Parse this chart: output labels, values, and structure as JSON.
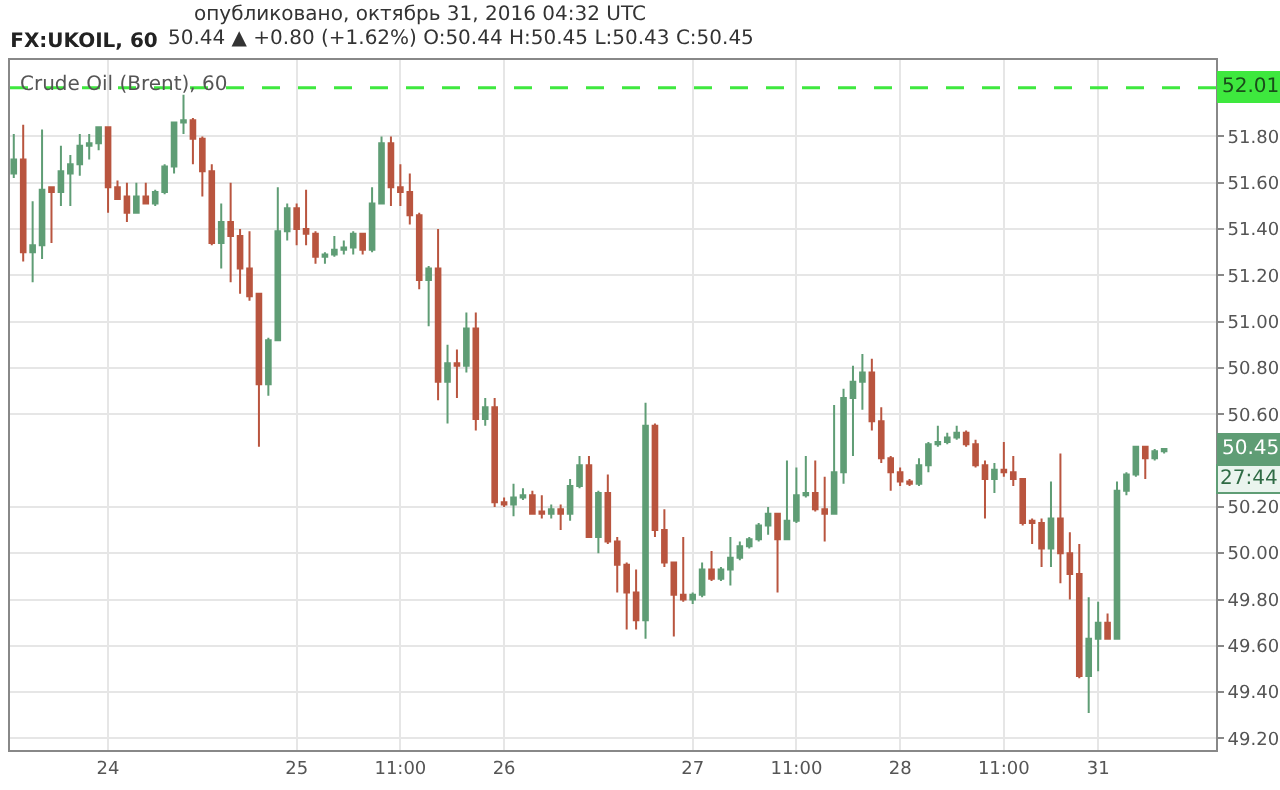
{
  "chart_data": {
    "type": "candlestick",
    "title": "FX:UKOIL, 60",
    "subtitle": "50.44 ▲ +0.80 (+1.62%) O:50.44 H:50.45 L:50.43 C:50.45",
    "annotations": [
      "опубликовано, октябрь 31, 2016 04:32 UTC",
      "Crude Oil (Brent), 60",
      "50.45",
      "27:44"
    ],
    "categories": [
      null,
      null,
      null,
      null,
      null,
      null,
      null,
      null,
      null,
      null,
      "24",
      null,
      null,
      null,
      null,
      null,
      null,
      null,
      null,
      null,
      null,
      null,
      null,
      null,
      null,
      null,
      null,
      null,
      null,
      null,
      "25",
      null,
      null,
      null,
      null,
      null,
      null,
      null,
      null,
      null,
      null,
      "11:00",
      null,
      null,
      null,
      null,
      null,
      null,
      null,
      null,
      null,
      null,
      "26",
      null,
      null,
      null,
      null,
      null,
      null,
      null,
      null,
      null,
      null,
      null,
      null,
      null,
      null,
      null,
      null,
      null,
      null,
      null,
      "27",
      null,
      null,
      null,
      null,
      null,
      null,
      null,
      null,
      null,
      null,
      "11:00",
      null,
      null,
      null,
      null,
      null,
      null,
      null,
      null,
      null,
      null,
      "28",
      null,
      null,
      null,
      null,
      null,
      null,
      null,
      null,
      null,
      null,
      "11:00",
      null,
      null,
      null,
      null,
      null,
      null,
      null,
      null,
      null,
      "31",
      null,
      null,
      null,
      null,
      null,
      null,
      null
    ],
    "ohlc": [
      [
        51.64,
        51.81,
        51.62,
        51.7
      ],
      [
        51.7,
        51.85,
        51.26,
        51.3
      ],
      [
        51.3,
        51.52,
        51.17,
        51.33
      ],
      [
        51.33,
        51.83,
        51.27,
        51.57
      ],
      [
        51.58,
        51.58,
        51.34,
        51.56
      ],
      [
        51.56,
        51.76,
        51.5,
        51.65
      ],
      [
        51.64,
        51.72,
        51.5,
        51.68
      ],
      [
        51.68,
        51.81,
        51.63,
        51.76
      ],
      [
        51.76,
        51.81,
        51.7,
        51.77
      ],
      [
        51.77,
        51.84,
        51.74,
        51.84
      ],
      [
        51.84,
        51.84,
        51.47,
        51.58
      ],
      [
        51.58,
        51.61,
        51.53,
        51.53
      ],
      [
        51.54,
        51.6,
        51.43,
        51.47
      ],
      [
        51.47,
        51.6,
        51.47,
        51.54
      ],
      [
        51.54,
        51.6,
        51.51,
        51.51
      ],
      [
        51.51,
        51.57,
        51.5,
        51.56
      ],
      [
        51.56,
        51.68,
        51.55,
        51.67
      ],
      [
        51.67,
        51.86,
        51.64,
        51.86
      ],
      [
        51.86,
        51.98,
        51.81,
        51.87
      ],
      [
        51.87,
        51.88,
        51.68,
        51.79
      ],
      [
        51.79,
        51.8,
        51.54,
        51.65
      ],
      [
        51.65,
        51.68,
        51.33,
        51.34
      ],
      [
        51.34,
        51.51,
        51.23,
        51.43
      ],
      [
        51.43,
        51.6,
        51.17,
        51.37
      ],
      [
        51.37,
        51.4,
        51.12,
        51.23
      ],
      [
        51.23,
        51.39,
        51.09,
        51.11
      ],
      [
        51.12,
        51.12,
        50.46,
        50.73
      ],
      [
        50.73,
        50.93,
        50.68,
        50.92
      ],
      [
        50.92,
        51.58,
        50.92,
        51.39
      ],
      [
        51.39,
        51.51,
        51.35,
        51.49
      ],
      [
        51.49,
        51.51,
        51.33,
        51.4
      ],
      [
        51.4,
        51.57,
        51.33,
        51.38
      ],
      [
        51.38,
        51.39,
        51.25,
        51.28
      ],
      [
        51.28,
        51.3,
        51.25,
        51.29
      ],
      [
        51.29,
        51.37,
        51.28,
        51.31
      ],
      [
        51.31,
        51.35,
        51.29,
        51.32
      ],
      [
        51.32,
        51.39,
        51.29,
        51.38
      ],
      [
        51.38,
        51.38,
        51.29,
        51.31
      ],
      [
        51.31,
        51.58,
        51.3,
        51.51
      ],
      [
        51.51,
        51.8,
        51.51,
        51.77
      ],
      [
        51.77,
        51.8,
        51.5,
        51.58
      ],
      [
        51.58,
        51.68,
        51.5,
        51.56
      ],
      [
        51.56,
        51.64,
        51.42,
        51.46
      ],
      [
        51.46,
        51.47,
        51.14,
        51.18
      ],
      [
        51.18,
        51.24,
        50.98,
        51.23
      ],
      [
        51.23,
        51.4,
        50.66,
        50.74
      ],
      [
        50.74,
        50.9,
        50.56,
        50.82
      ],
      [
        50.82,
        50.88,
        50.67,
        50.81
      ],
      [
        50.81,
        51.04,
        50.78,
        50.97
      ],
      [
        50.97,
        51.04,
        50.53,
        50.58
      ],
      [
        50.58,
        50.67,
        50.55,
        50.63
      ],
      [
        50.63,
        50.67,
        50.2,
        50.22
      ],
      [
        50.22,
        50.24,
        50.2,
        50.21
      ],
      [
        50.21,
        50.3,
        50.16,
        50.24
      ],
      [
        50.24,
        50.28,
        50.23,
        50.25
      ],
      [
        50.25,
        50.27,
        50.17,
        50.17
      ],
      [
        50.18,
        50.25,
        50.15,
        50.17
      ],
      [
        50.17,
        50.21,
        50.15,
        50.19
      ],
      [
        50.19,
        50.21,
        50.1,
        50.17
      ],
      [
        50.17,
        50.32,
        50.14,
        50.29
      ],
      [
        50.29,
        50.42,
        50.28,
        50.38
      ],
      [
        50.38,
        50.42,
        50.07,
        50.07
      ],
      [
        50.07,
        50.27,
        50.0,
        50.26
      ],
      [
        50.26,
        50.34,
        50.04,
        50.05
      ],
      [
        50.05,
        50.07,
        49.83,
        49.95
      ],
      [
        49.95,
        49.96,
        49.67,
        49.83
      ],
      [
        49.83,
        49.93,
        49.67,
        49.71
      ],
      [
        49.71,
        50.65,
        49.63,
        50.55
      ],
      [
        50.55,
        50.56,
        50.07,
        50.1
      ],
      [
        50.1,
        50.19,
        49.94,
        49.96
      ],
      [
        49.96,
        49.96,
        49.64,
        49.82
      ],
      [
        49.82,
        50.07,
        49.79,
        49.8
      ],
      [
        49.8,
        49.83,
        49.78,
        49.82
      ],
      [
        49.82,
        49.96,
        49.81,
        49.93
      ],
      [
        49.93,
        50.01,
        49.88,
        49.89
      ],
      [
        49.89,
        49.94,
        49.88,
        49.93
      ],
      [
        49.93,
        50.07,
        49.86,
        49.98
      ],
      [
        49.98,
        50.05,
        49.97,
        50.03
      ],
      [
        50.03,
        50.07,
        50.02,
        50.06
      ],
      [
        50.06,
        50.13,
        50.05,
        50.12
      ],
      [
        50.12,
        50.2,
        50.08,
        50.17
      ],
      [
        50.17,
        50.17,
        49.83,
        50.06
      ],
      [
        50.06,
        50.4,
        50.06,
        50.14
      ],
      [
        50.14,
        50.37,
        50.13,
        50.25
      ],
      [
        50.25,
        50.42,
        50.24,
        50.26
      ],
      [
        50.26,
        50.4,
        50.18,
        50.19
      ],
      [
        50.19,
        50.33,
        50.05,
        50.17
      ],
      [
        50.17,
        50.64,
        50.17,
        50.35
      ],
      [
        50.35,
        50.71,
        50.3,
        50.67
      ],
      [
        50.67,
        50.81,
        50.42,
        50.74
      ],
      [
        50.74,
        50.86,
        50.62,
        50.78
      ],
      [
        50.78,
        50.84,
        50.53,
        50.57
      ],
      [
        50.57,
        50.63,
        50.39,
        50.41
      ],
      [
        50.41,
        50.42,
        50.27,
        50.35
      ],
      [
        50.35,
        50.37,
        50.29,
        50.31
      ],
      [
        50.31,
        50.32,
        50.29,
        50.3
      ],
      [
        50.3,
        50.41,
        50.29,
        50.38
      ],
      [
        50.38,
        50.48,
        50.35,
        50.47
      ],
      [
        50.47,
        50.55,
        50.46,
        50.48
      ],
      [
        50.48,
        50.52,
        50.47,
        50.5
      ],
      [
        50.5,
        50.55,
        50.49,
        50.52
      ],
      [
        50.52,
        50.53,
        50.46,
        50.47
      ],
      [
        50.47,
        50.49,
        50.37,
        50.38
      ],
      [
        50.38,
        50.4,
        50.15,
        50.32
      ],
      [
        50.32,
        50.39,
        50.26,
        50.36
      ],
      [
        50.36,
        50.48,
        50.33,
        50.35
      ],
      [
        50.35,
        50.42,
        50.29,
        50.32
      ],
      [
        50.32,
        50.32,
        50.12,
        50.13
      ],
      [
        50.14,
        50.15,
        50.04,
        50.13
      ],
      [
        50.13,
        50.15,
        49.94,
        50.02
      ],
      [
        50.02,
        50.31,
        49.94,
        50.15
      ],
      [
        50.15,
        50.43,
        49.87,
        50.0
      ],
      [
        50.0,
        50.09,
        49.8,
        49.91
      ],
      [
        49.91,
        50.04,
        49.46,
        49.47
      ],
      [
        49.47,
        49.81,
        49.31,
        49.63
      ],
      [
        49.63,
        49.79,
        49.49,
        49.7
      ],
      [
        49.7,
        49.74,
        49.63,
        49.63
      ],
      [
        49.63,
        50.31,
        49.63,
        50.27
      ],
      [
        50.27,
        50.35,
        50.25,
        50.34
      ],
      [
        50.34,
        50.46,
        50.33,
        50.46
      ],
      [
        50.46,
        50.46,
        50.32,
        50.41
      ],
      [
        50.41,
        50.45,
        50.4,
        50.44
      ],
      [
        50.44,
        50.45,
        50.43,
        50.45
      ]
    ],
    "colors": [
      "#5f9d75",
      "#b9553f",
      "#5f9d75",
      "#5f9d75",
      "#b9553f",
      "#5f9d75",
      "#5f9d75",
      "#5f9d75",
      "#5f9d75",
      "#5f9d75",
      "#b9553f",
      "#b9553f",
      "#b9553f",
      "#5f9d75",
      "#b9553f",
      "#5f9d75",
      "#5f9d75",
      "#5f9d75",
      "#5f9d75",
      "#b9553f",
      "#b9553f",
      "#b9553f",
      "#5f9d75",
      "#b9553f",
      "#b9553f",
      "#b9553f",
      "#b9553f",
      "#5f9d75",
      "#5f9d75",
      "#5f9d75",
      "#b9553f",
      "#b9553f",
      "#b9553f",
      "#5f9d75",
      "#5f9d75",
      "#5f9d75",
      "#5f9d75",
      "#b9553f",
      "#5f9d75",
      "#5f9d75",
      "#b9553f",
      "#b9553f",
      "#b9553f",
      "#b9553f",
      "#5f9d75",
      "#b9553f",
      "#5f9d75",
      "#b9553f",
      "#5f9d75",
      "#b9553f",
      "#5f9d75",
      "#b9553f",
      "#b9553f",
      "#5f9d75",
      "#5f9d75",
      "#b9553f",
      "#b9553f",
      "#5f9d75",
      "#b9553f",
      "#5f9d75",
      "#5f9d75",
      "#b9553f",
      "#5f9d75",
      "#b9553f",
      "#b9553f",
      "#b9553f",
      "#b9553f",
      "#5f9d75",
      "#b9553f",
      "#b9553f",
      "#b9553f",
      "#b9553f",
      "#5f9d75",
      "#5f9d75",
      "#b9553f",
      "#5f9d75",
      "#5f9d75",
      "#5f9d75",
      "#5f9d75",
      "#5f9d75",
      "#5f9d75",
      "#b9553f",
      "#5f9d75",
      "#5f9d75",
      "#5f9d75",
      "#b9553f",
      "#b9553f",
      "#5f9d75",
      "#5f9d75",
      "#5f9d75",
      "#5f9d75",
      "#b9553f",
      "#b9553f",
      "#b9553f",
      "#b9553f",
      "#b9553f",
      "#5f9d75",
      "#5f9d75",
      "#5f9d75",
      "#5f9d75",
      "#5f9d75",
      "#b9553f",
      "#b9553f",
      "#b9553f",
      "#5f9d75",
      "#b9553f",
      "#b9553f",
      "#b9553f",
      "#b9553f",
      "#b9553f",
      "#5f9d75",
      "#b9553f",
      "#b9553f",
      "#b9553f",
      "#5f9d75",
      "#5f9d75",
      "#b9553f",
      "#5f9d75",
      "#5f9d75",
      "#5f9d75",
      "#b9553f",
      "#5f9d75",
      "#5f9d75"
    ],
    "ylim": [
      49.15,
      52.13
    ],
    "yticks": [
      {
        "value": 49.2,
        "label": "49.20"
      },
      {
        "value": 49.4,
        "label": "49.40"
      },
      {
        "value": 49.6,
        "label": "49.60"
      },
      {
        "value": 49.8,
        "label": "49.80"
      },
      {
        "value": 50.0,
        "label": "50.00"
      },
      {
        "value": 50.2,
        "label": "50.20"
      },
      {
        "value": 50.6,
        "label": "50.60"
      },
      {
        "value": 50.8,
        "label": "50.80"
      },
      {
        "value": 51.0,
        "label": "51.00"
      },
      {
        "value": 51.2,
        "label": "51.20"
      },
      {
        "value": 51.4,
        "label": "51.40"
      },
      {
        "value": 51.6,
        "label": "51.60"
      },
      {
        "value": 51.8,
        "label": "51.80"
      }
    ],
    "ref_lines": [
      {
        "axis": "y",
        "value": 52.01,
        "label": "52.01",
        "color": "#3ee83e",
        "line_style": "dashed"
      }
    ],
    "grid": true
  }
}
